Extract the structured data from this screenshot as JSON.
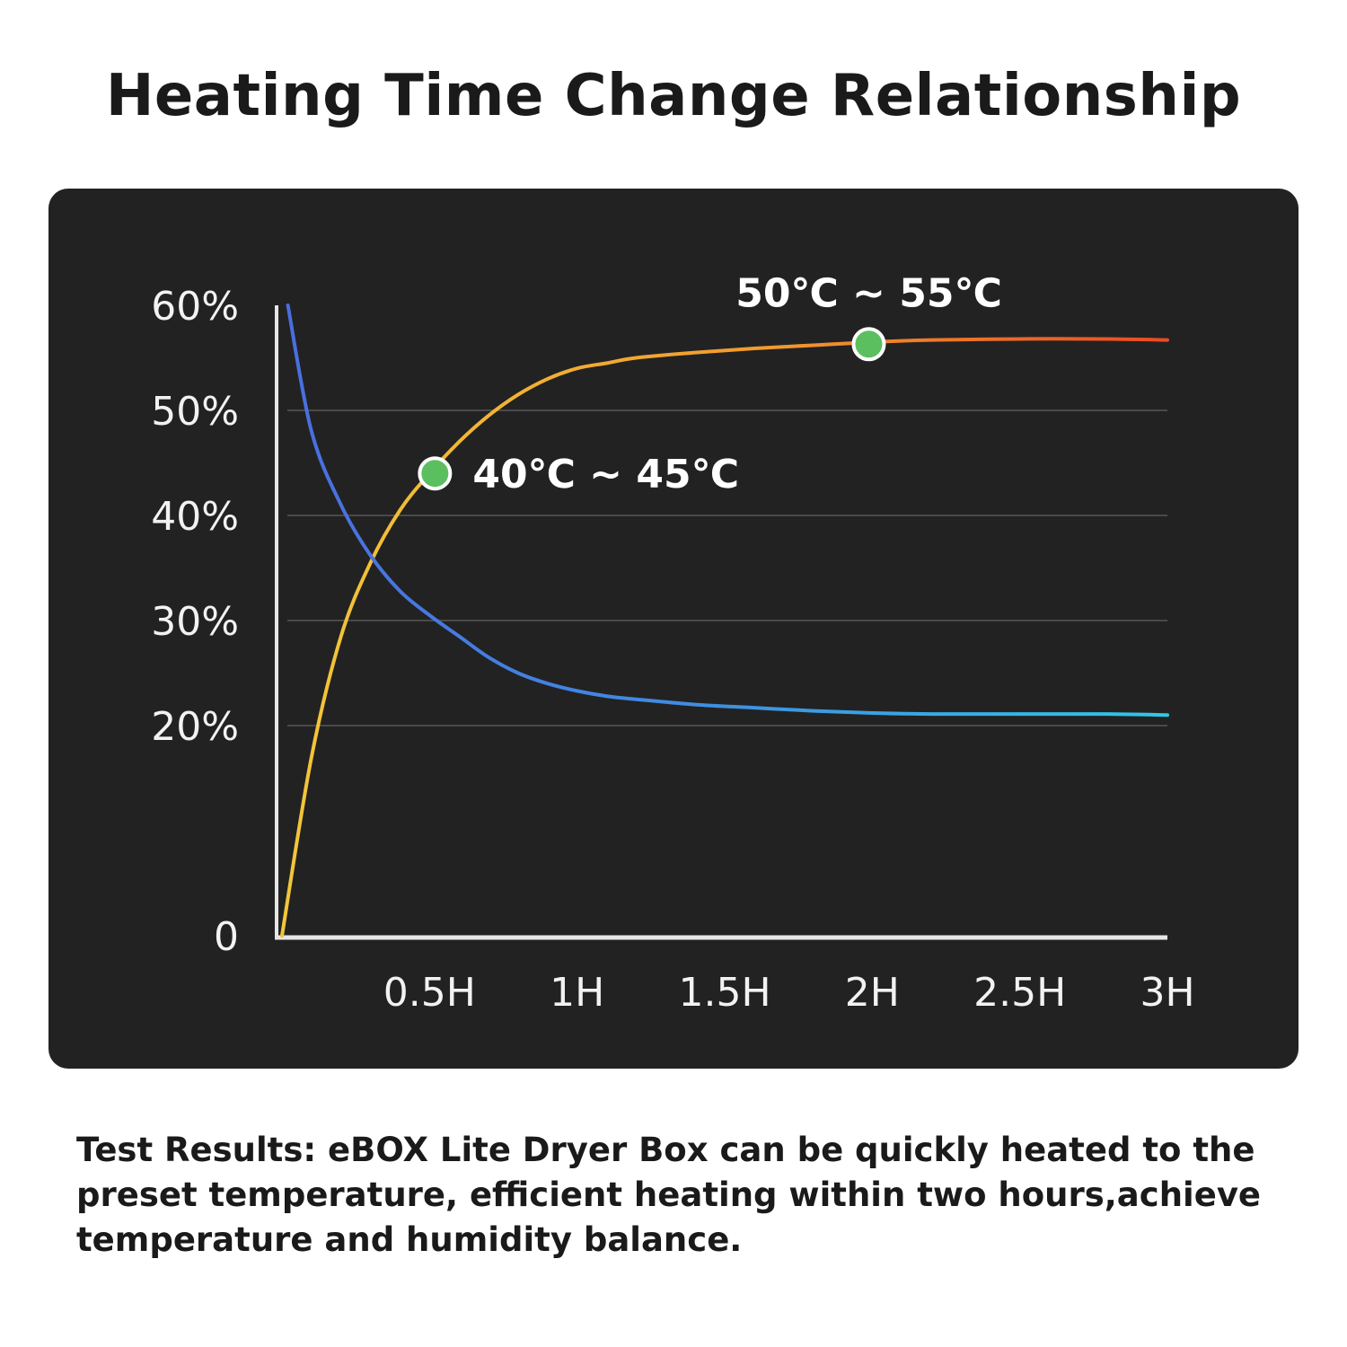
{
  "title": "Heating Time Change Relationship",
  "footer": {
    "lead": "Test Results:",
    "body": " eBOX Lite Dryer Box can be quickly heated to the preset temperature, efficient heating within two hours,achieve temperature and humidity balance."
  },
  "colors": {
    "panel": "#222222",
    "grid": "#4a4a4a",
    "axis": "#e6e6e6",
    "marker": "#5cbf5f",
    "temp_start": "#f2c83a",
    "temp_mid": "#f29a2e",
    "temp_end": "#ea4a24",
    "hum_start": "#4a6de0",
    "hum_end": "#30c8e8"
  },
  "chart_data": {
    "type": "line",
    "title": "Heating Time Change Relationship",
    "xlabel": "",
    "ylabel": "",
    "xlim": [
      0,
      3
    ],
    "ylim": [
      0,
      60
    ],
    "x_tick_values": [
      0.5,
      1,
      1.5,
      2,
      2.5,
      3
    ],
    "x_tick_labels": [
      "0.5H",
      "1H",
      "1.5H",
      "2H",
      "2.5H",
      "3H"
    ],
    "y_tick_values": [
      0,
      20,
      30,
      40,
      50,
      60
    ],
    "y_tick_labels": [
      "0",
      "20%",
      "30%",
      "40%",
      "50%",
      "60%"
    ],
    "grid": true,
    "series": [
      {
        "x": [
          0,
          0.1,
          0.2,
          0.3,
          0.4,
          0.5,
          0.6,
          0.7,
          0.8,
          0.9,
          1.0,
          1.1,
          1.2,
          1.4,
          1.6,
          1.8,
          2.0,
          2.2,
          2.5,
          2.8,
          3.0
        ],
        "values": [
          0,
          17,
          28.5,
          35.5,
          40.5,
          44,
          47,
          49.5,
          51.5,
          53,
          54,
          54.5,
          55,
          55.5,
          55.9,
          56.2,
          56.5,
          56.7,
          56.8,
          56.8,
          56.7
        ],
        "color": "#f29a2e"
      },
      {
        "x": [
          0.02,
          0.1,
          0.2,
          0.3,
          0.4,
          0.5,
          0.6,
          0.7,
          0.8,
          0.9,
          1.0,
          1.1,
          1.2,
          1.4,
          1.6,
          1.8,
          2.0,
          2.2,
          2.5,
          2.8,
          3.0
        ],
        "values": [
          60,
          48,
          41,
          36.2,
          32.8,
          30.5,
          28.5,
          26.5,
          25,
          24,
          23.3,
          22.8,
          22.5,
          22,
          21.7,
          21.4,
          21.2,
          21.1,
          21.1,
          21.1,
          21
        ],
        "color": "#3d7be0"
      }
    ],
    "annotations": [
      {
        "label": "40℃ ~ 45℃",
        "x": 0.5,
        "y": 44
      },
      {
        "label": "50℃ ~ 55℃",
        "x": 1.97,
        "y": 56.3
      }
    ]
  }
}
